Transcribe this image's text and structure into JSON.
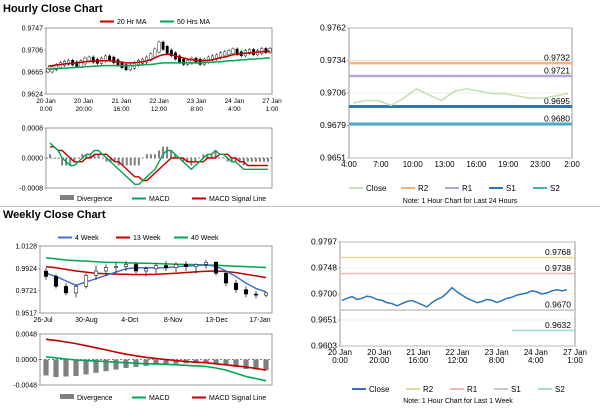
{
  "sections": {
    "hourly_title": "Hourly Close Chart",
    "weekly_title": "Weekly Close Chart"
  },
  "colors": {
    "close": "#000000",
    "ma20": "#c00000",
    "ma50": "#00a651",
    "bar_bull": "#ffffff",
    "bar_bear": "#000000",
    "divergence": "#808080",
    "macd": "#00a651",
    "signal": "#c00000",
    "band_line": "#2e75b6",
    "pivot_close": "#c6e0b4",
    "pivot_r2": "#f4b183",
    "pivot_r1": "#b4a7d6",
    "pivot_s1": "#2e75b6",
    "pivot_s2": "#4bacc6",
    "w_r2": "#e6d9a0",
    "w_r1": "#f4b6b6",
    "w_s1": "#c8c8c8",
    "w_s2": "#a8d8d8",
    "w4": "#4472c4",
    "w13": "#c00000",
    "w40": "#00a651"
  },
  "chart_data": [
    {
      "id": "hourly_price",
      "type": "line",
      "title": "Hourly Close Chart",
      "legend": [
        "20 Hr MA",
        "50 Hrs MA"
      ],
      "x_tick_labels": [
        [
          "20 Jan",
          "0:00"
        ],
        [
          "20 Jan",
          "20:00"
        ],
        [
          "21 Jan",
          "16:00"
        ],
        [
          "22 Jan",
          "12:00"
        ],
        [
          "23 Jan",
          "8:00"
        ],
        [
          "24 Jan",
          "4:00"
        ],
        [
          "27 Jan",
          "1:00"
        ]
      ],
      "y_tick_labels": [
        "0.9747",
        "0.9706",
        "0.9665",
        "0.9624"
      ],
      "ylim": [
        0.9624,
        0.9747
      ],
      "close": [
        0.9668,
        0.9672,
        0.9676,
        0.968,
        0.9682,
        0.9684,
        0.9681,
        0.9678,
        0.9683,
        0.9688,
        0.969,
        0.9686,
        0.9684,
        0.9688,
        0.9692,
        0.969,
        0.9685,
        0.968,
        0.9676,
        0.9672,
        0.9675,
        0.968,
        0.9684,
        0.9686,
        0.969,
        0.9696,
        0.9705,
        0.9718,
        0.971,
        0.9703,
        0.9698,
        0.9692,
        0.9686,
        0.9682,
        0.9684,
        0.9688,
        0.9686,
        0.9682,
        0.9686,
        0.969,
        0.9692,
        0.9694,
        0.9698,
        0.97,
        0.9702,
        0.9705,
        0.97,
        0.9698,
        0.9702,
        0.9704,
        0.97,
        0.9702,
        0.9706,
        0.9704,
        0.9706
      ],
      "ma20": [
        0.9676,
        0.9677,
        0.9678,
        0.9679,
        0.968,
        0.9681,
        0.9681,
        0.9682,
        0.9683,
        0.9684,
        0.9685,
        0.9685,
        0.9686,
        0.9686,
        0.9686,
        0.9686,
        0.9685,
        0.9684,
        0.9683,
        0.9682,
        0.9682,
        0.9682,
        0.9683,
        0.9684,
        0.9686,
        0.9688,
        0.9691,
        0.9695,
        0.9697,
        0.9698,
        0.9697,
        0.9695,
        0.9693,
        0.9691,
        0.9689,
        0.9688,
        0.9687,
        0.9686,
        0.9686,
        0.9687,
        0.9688,
        0.969,
        0.9692,
        0.9693,
        0.9695,
        0.9697,
        0.9698,
        0.9699,
        0.97,
        0.9701,
        0.9701,
        0.9702,
        0.9703,
        0.9703,
        0.9704
      ],
      "ma50": [
        0.967,
        0.9671,
        0.9671,
        0.9672,
        0.9672,
        0.9673,
        0.9673,
        0.9674,
        0.9674,
        0.9675,
        0.9675,
        0.9676,
        0.9676,
        0.9677,
        0.9677,
        0.9677,
        0.9677,
        0.9677,
        0.9677,
        0.9677,
        0.9677,
        0.9677,
        0.9678,
        0.9678,
        0.9679,
        0.9679,
        0.968,
        0.9681,
        0.9682,
        0.9682,
        0.9682,
        0.9682,
        0.9682,
        0.9682,
        0.9682,
        0.9682,
        0.9682,
        0.9682,
        0.9682,
        0.9683,
        0.9683,
        0.9684,
        0.9684,
        0.9685,
        0.9686,
        0.9686,
        0.9687,
        0.9688,
        0.9688,
        0.9689,
        0.9689,
        0.969,
        0.969,
        0.9691,
        0.9691
      ]
    },
    {
      "id": "hourly_macd",
      "type": "line",
      "legend": [
        "Divergence",
        "MACD",
        "MACD Signal Line"
      ],
      "y_tick_labels": [
        "0.0008",
        "0.0000",
        "-0.0008"
      ],
      "ylim": [
        -0.0008,
        0.0008
      ],
      "macd": [
        0.0004,
        0.0003,
        0.0002,
        0.0,
        -0.0001,
        -0.0002,
        -0.0002,
        -0.0001,
        0.0,
        0.0001,
        0.0001,
        0.0002,
        0.0002,
        0.0001,
        0.0,
        -0.0001,
        -0.0002,
        -0.0003,
        -0.0004,
        -0.0005,
        -0.0006,
        -0.0007,
        -0.0007,
        -0.0006,
        -0.0005,
        -0.0004,
        -0.0003,
        -0.0001,
        0.0001,
        0.0002,
        0.0002,
        0.0001,
        0.0,
        -0.0001,
        -0.0002,
        -0.0003,
        -0.0002,
        -0.0001,
        0.0,
        0.0001,
        0.0001,
        0.0002,
        0.0001,
        0.0001,
        0.0,
        -0.0001,
        -0.0001,
        -0.0002,
        -0.0003,
        -0.0003,
        -0.0003,
        -0.0003,
        -0.0003,
        -0.0003,
        -0.0003
      ],
      "signal": [
        0.0003,
        0.0003,
        0.0002,
        0.0002,
        0.0001,
        0.0,
        -0.0001,
        -0.0001,
        -0.0001,
        0.0,
        0.0,
        0.0001,
        0.0001,
        0.0001,
        0.0001,
        0.0,
        -0.0001,
        -0.0001,
        -0.0002,
        -0.0003,
        -0.0004,
        -0.0005,
        -0.0005,
        -0.0006,
        -0.0006,
        -0.0005,
        -0.0004,
        -0.0003,
        -0.0002,
        -0.0001,
        0.0,
        0.0,
        0.0,
        0.0,
        -0.0001,
        -0.0001,
        -0.0001,
        -0.0001,
        -0.0001,
        0.0,
        0.0,
        0.0,
        0.0001,
        0.0001,
        0.0001,
        0.0,
        0.0,
        -0.0001,
        -0.0001,
        -0.0002,
        -0.0002,
        -0.0002,
        -0.0002,
        -0.0002,
        -0.0002
      ],
      "divergence": [
        0.0001,
        0.0,
        0.0,
        -0.0002,
        -0.0002,
        -0.0002,
        -0.0001,
        0.0,
        0.0001,
        0.0001,
        0.0001,
        0.0001,
        0.0001,
        0.0,
        -0.0001,
        -0.0001,
        -0.0001,
        -0.0002,
        -0.0002,
        -0.0002,
        -0.0002,
        -0.0002,
        -0.0002,
        0.0,
        0.0001,
        0.0001,
        0.0001,
        0.0002,
        0.0003,
        0.0003,
        0.0002,
        0.0001,
        0.0,
        -0.0001,
        -0.0001,
        -0.0002,
        -0.0001,
        0.0,
        0.0001,
        0.0001,
        0.0001,
        0.0002,
        0.0,
        0.0,
        -0.0001,
        -0.0001,
        -0.0001,
        -0.0001,
        -0.0002,
        -0.0001,
        -0.0001,
        -0.0001,
        -0.0001,
        -0.0001,
        -0.0001
      ]
    },
    {
      "id": "hourly_pivots",
      "type": "line",
      "y_tick_labels": [
        "0.9762",
        "0.9734",
        "0.9706",
        "0.9679",
        "0.9651"
      ],
      "ylim": [
        0.9651,
        0.9762
      ],
      "x_tick_labels": [
        "4:00",
        "7:00",
        "10:00",
        "13:00",
        "16:00",
        "19:00",
        "23:00",
        "2:00"
      ],
      "levels": {
        "R2": 0.9732,
        "R1": 0.9721,
        "S1": 0.9695,
        "S2": 0.968
      },
      "level_labels": {
        "R2": "0.9732",
        "R1": "0.9721",
        "S1": "0.9695",
        "S2": "0.9680"
      },
      "close": [
        0.9698,
        0.97,
        0.97,
        0.9696,
        0.9702,
        0.971,
        0.9705,
        0.97,
        0.9708,
        0.971,
        0.9708,
        0.9706,
        0.9706,
        0.9704,
        0.9702,
        0.9702,
        0.9704,
        0.9706
      ],
      "legend": [
        "Close",
        "R2",
        "R1",
        "S1",
        "S2"
      ],
      "note": "Note: 1 Hour Chart for Last 24 Hours"
    },
    {
      "id": "weekly_price",
      "type": "line",
      "title": "Weekly Close Chart",
      "legend": [
        "4 Week",
        "13 Week",
        "40 Week"
      ],
      "x_tick_labels": [
        "26-Jul",
        "30-Aug",
        "4-Oct",
        "8-Nov",
        "13-Dec",
        "17-Jan"
      ],
      "y_tick_labels": [
        "1.0128",
        "0.9924",
        "0.9721",
        "0.9517"
      ],
      "ylim": [
        0.9517,
        1.0128
      ],
      "ohlc": [
        [
          0.99,
          0.993,
          0.982,
          0.985
        ],
        [
          0.985,
          0.987,
          0.974,
          0.976
        ],
        [
          0.976,
          0.979,
          0.968,
          0.97
        ],
        [
          0.97,
          0.978,
          0.966,
          0.976
        ],
        [
          0.976,
          0.988,
          0.974,
          0.986
        ],
        [
          0.986,
          0.995,
          0.982,
          0.99
        ],
        [
          0.99,
          0.996,
          0.986,
          0.993
        ],
        [
          0.993,
          0.998,
          0.988,
          0.994
        ],
        [
          0.994,
          0.999,
          0.99,
          0.996
        ],
        [
          0.996,
          0.998,
          0.988,
          0.99
        ],
        [
          0.99,
          0.994,
          0.985,
          0.992
        ],
        [
          0.992,
          0.997,
          0.988,
          0.995
        ],
        [
          0.995,
          0.999,
          0.99,
          0.993
        ],
        [
          0.993,
          0.998,
          0.989,
          0.996
        ],
        [
          0.996,
          0.999,
          0.99,
          0.994
        ],
        [
          0.994,
          0.997,
          0.988,
          0.996
        ],
        [
          0.996,
          1.0,
          0.992,
          0.998
        ],
        [
          0.998,
          0.999,
          0.986,
          0.988
        ],
        [
          0.988,
          0.99,
          0.976,
          0.979
        ],
        [
          0.979,
          0.982,
          0.97,
          0.973
        ],
        [
          0.973,
          0.976,
          0.966,
          0.969
        ],
        [
          0.969,
          0.972,
          0.965,
          0.968
        ],
        [
          0.968,
          0.971,
          0.966,
          0.97
        ]
      ],
      "w4": [
        0.988,
        0.985,
        0.981,
        0.977,
        0.98,
        0.983,
        0.986,
        0.989,
        0.992,
        0.993,
        0.993,
        0.993,
        0.993,
        0.994,
        0.9945,
        0.995,
        0.9955,
        0.9945,
        0.99,
        0.985,
        0.979,
        0.974,
        0.971
      ],
      "w13": [
        0.994,
        0.993,
        0.9915,
        0.99,
        0.989,
        0.988,
        0.9875,
        0.9872,
        0.987,
        0.9868,
        0.9868,
        0.987,
        0.9875,
        0.988,
        0.9886,
        0.9892,
        0.9898,
        0.99,
        0.9895,
        0.9885,
        0.987,
        0.9855,
        0.984
      ],
      "w40": [
        1.002,
        1.001,
        1.0,
        0.9995,
        0.999,
        0.9985,
        0.998,
        0.9978,
        0.9975,
        0.9972,
        0.997,
        0.9968,
        0.9965,
        0.9962,
        0.996,
        0.9958,
        0.9955,
        0.9952,
        0.9948,
        0.9944,
        0.994,
        0.9936,
        0.9932
      ]
    },
    {
      "id": "weekly_macd",
      "type": "bar",
      "legend": [
        "Divergence",
        "MACD",
        "MACD Signal Line"
      ],
      "y_tick_labels": [
        "0.0048",
        "0.0000",
        "-0.0048"
      ],
      "ylim": [
        -0.0048,
        0.0048
      ],
      "macd": [
        0.0005,
        0.0003,
        0.0001,
        -0.0001,
        -0.0002,
        -0.0003,
        -0.0004,
        -0.0005,
        -0.0006,
        -0.0007,
        -0.0008,
        -0.0008,
        -0.0009,
        -0.001,
        -0.0011,
        -0.0012,
        -0.0013,
        -0.0016,
        -0.002,
        -0.0026,
        -0.0032,
        -0.0036,
        -0.004
      ],
      "signal": [
        0.0038,
        0.0036,
        0.0033,
        0.003,
        0.0026,
        0.0022,
        0.0018,
        0.0014,
        0.001,
        0.0007,
        0.0004,
        0.0002,
        0.0,
        -0.0002,
        -0.0004,
        -0.0005,
        -0.0006,
        -0.0008,
        -0.001,
        -0.0012,
        -0.0014,
        -0.0017,
        -0.002
      ],
      "divergence": [
        -0.003,
        -0.0033,
        -0.0032,
        -0.0031,
        -0.0028,
        -0.0025,
        -0.0022,
        -0.0019,
        -0.0016,
        -0.0014,
        -0.0012,
        -0.001,
        -0.0009,
        -0.0008,
        -0.0007,
        -0.0007,
        -0.0007,
        -0.0008,
        -0.001,
        -0.0014,
        -0.0018,
        -0.0019,
        -0.002
      ]
    },
    {
      "id": "weekly_pivots",
      "type": "line",
      "y_tick_labels": [
        "0.9797",
        "0.9748",
        "0.9700",
        "0.9651",
        "0.9603"
      ],
      "ylim": [
        0.9603,
        0.9797
      ],
      "x_tick_labels": [
        [
          "20 Jan",
          "0:00"
        ],
        [
          "20 Jan",
          "20:00"
        ],
        [
          "21 Jan",
          "16:00"
        ],
        [
          "22 Jan",
          "12:00"
        ],
        [
          "23 Jan",
          "8:00"
        ],
        [
          "24 Jan",
          "4:00"
        ],
        [
          "27 Jan",
          "1:00"
        ]
      ],
      "levels": {
        "R2": 0.9768,
        "R1": 0.9738,
        "S1": 0.967,
        "S2": 0.9632
      },
      "level_labels": {
        "R2": "0.9768",
        "R1": "0.9738",
        "S1": "0.9670",
        "S2": "0.9632"
      },
      "close": [
        0.9688,
        0.9692,
        0.9695,
        0.969,
        0.9692,
        0.9696,
        0.9694,
        0.969,
        0.9688,
        0.9684,
        0.9682,
        0.9678,
        0.9682,
        0.9686,
        0.9688,
        0.9684,
        0.968,
        0.9676,
        0.9684,
        0.969,
        0.9694,
        0.9702,
        0.9712,
        0.9704,
        0.9698,
        0.9692,
        0.9688,
        0.9684,
        0.9686,
        0.969,
        0.9688,
        0.9684,
        0.9688,
        0.9692,
        0.9694,
        0.9698,
        0.97,
        0.9702,
        0.9706,
        0.9704,
        0.97,
        0.9702,
        0.9706,
        0.9708,
        0.9706,
        0.9708
      ],
      "legend": [
        "Close",
        "R2",
        "R1",
        "S1",
        "S2"
      ],
      "note": "Note: 1 Hour Chart for Last 1 Week"
    }
  ]
}
